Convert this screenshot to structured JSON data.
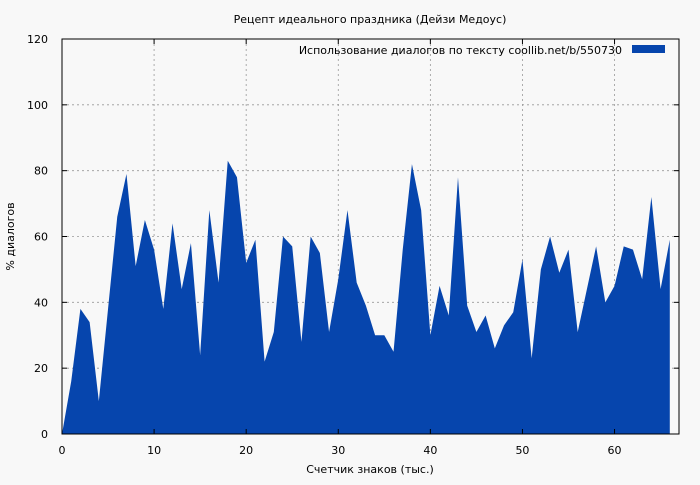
{
  "chart_data": {
    "type": "area",
    "title": "Рецепт идеального праздника (Дейзи Медоус)",
    "xlabel": "Счетчик знаков (тыс.)",
    "ylabel": "% диалогов",
    "xlim": [
      0,
      67
    ],
    "ylim": [
      0,
      120
    ],
    "xticks": [
      0,
      10,
      20,
      30,
      40,
      50,
      60
    ],
    "yticks": [
      0,
      20,
      40,
      60,
      80,
      100,
      120
    ],
    "grid": true,
    "legend_position": "top-right",
    "series": [
      {
        "name": "Использование диалогов по тексту  coollib.net/b/550730",
        "color": "#0645ad",
        "x": [
          0,
          1,
          2,
          3,
          4,
          5,
          6,
          7,
          8,
          9,
          10,
          11,
          12,
          13,
          14,
          15,
          16,
          17,
          18,
          19,
          20,
          21,
          22,
          23,
          24,
          25,
          26,
          27,
          28,
          29,
          30,
          31,
          32,
          33,
          34,
          35,
          36,
          37,
          38,
          39,
          40,
          41,
          42,
          43,
          44,
          45,
          46,
          47,
          48,
          49,
          50,
          51,
          52,
          53,
          54,
          55,
          56,
          57,
          58,
          59,
          60,
          61,
          62,
          63,
          64,
          65,
          66
        ],
        "y": [
          0,
          16,
          38,
          34,
          10,
          38,
          66,
          79,
          51,
          65,
          56,
          38,
          64,
          44,
          58,
          24,
          68,
          46,
          83,
          78,
          52,
          59,
          22,
          31,
          60,
          57,
          28,
          60,
          55,
          31,
          47,
          68,
          46,
          39,
          30,
          30,
          25,
          56,
          82,
          68,
          30,
          45,
          36,
          78,
          39,
          31,
          36,
          26,
          33,
          37,
          53,
          23,
          50,
          60,
          49,
          56,
          31,
          44,
          57,
          40,
          45,
          57,
          56,
          47,
          72,
          44,
          59
        ]
      }
    ]
  }
}
